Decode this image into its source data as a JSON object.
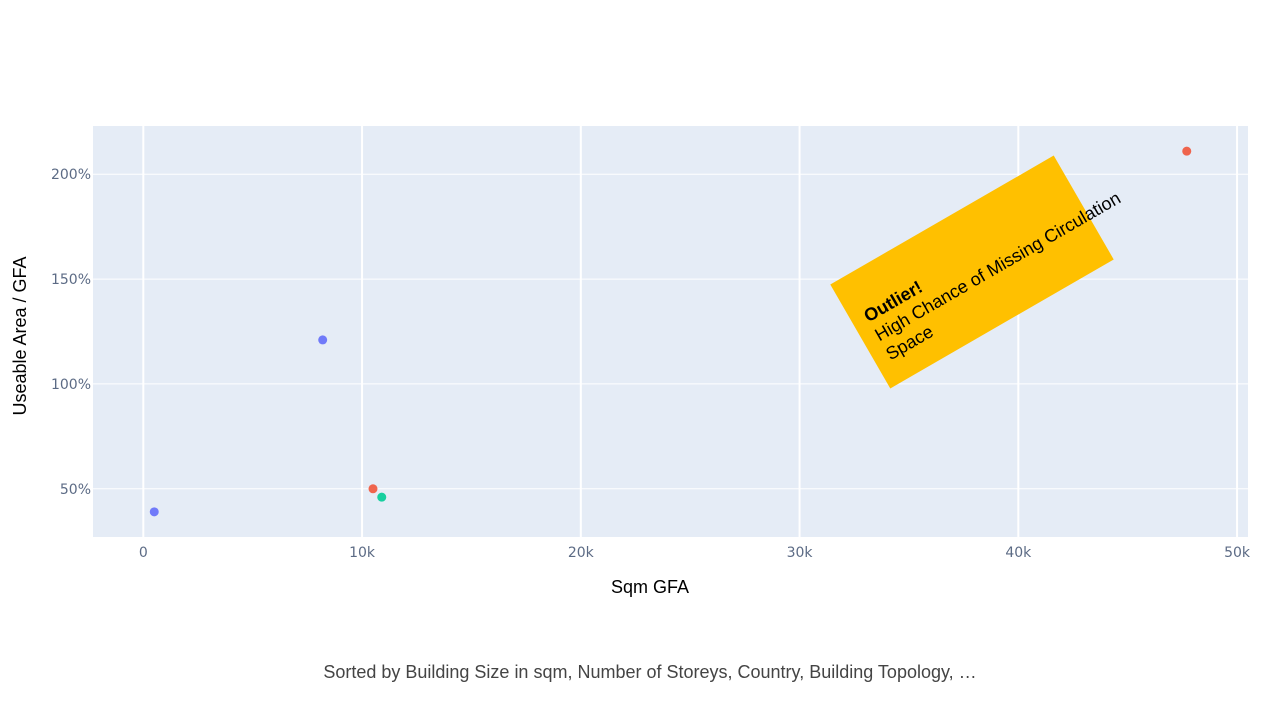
{
  "chart_data": {
    "type": "scatter",
    "xlabel": "Sqm GFA",
    "ylabel": "Useable Area / GFA",
    "xlim": [
      -2300,
      50500
    ],
    "ylim": [
      0.27,
      2.23
    ],
    "x_ticks": [
      0,
      10000,
      20000,
      30000,
      40000,
      50000
    ],
    "x_tick_labels": [
      "0",
      "10k",
      "20k",
      "30k",
      "40k",
      "50k"
    ],
    "y_ticks": [
      0.5,
      1.0,
      1.5,
      2.0
    ],
    "y_tick_labels": [
      "50%",
      "100%",
      "150%",
      "200%"
    ],
    "grid": true,
    "points": [
      {
        "x": 500,
        "y": 0.39,
        "color": "#636efa"
      },
      {
        "x": 8200,
        "y": 1.21,
        "color": "#636efa"
      },
      {
        "x": 10500,
        "y": 0.5,
        "color": "#ef553b"
      },
      {
        "x": 10900,
        "y": 0.46,
        "color": "#00cc96"
      },
      {
        "x": 47700,
        "y": 2.11,
        "color": "#ef553b"
      }
    ],
    "annotation": {
      "title": "Outlier!",
      "lines": [
        "High Chance of Missing Circulation",
        "Space"
      ],
      "background": "#ffc000"
    },
    "footnote": "Sorted by Building Size in sqm, Number of Storeys, Country, Building Topology,  …"
  },
  "colors": {
    "plot_background": "#e5ecf6",
    "grid": "#ffffff"
  }
}
